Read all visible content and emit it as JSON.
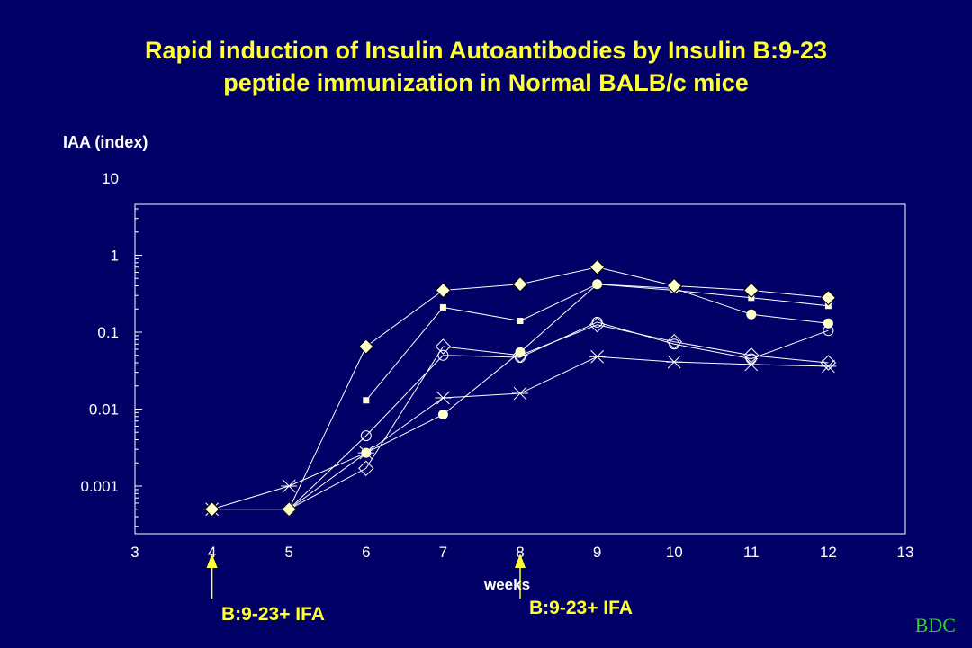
{
  "title_line1": "Rapid induction of Insulin Autoantibodies by Insulin B:9-23",
  "title_line2": "peptide immunization in Normal BALB/c mice",
  "logo": "BDC",
  "annotations": {
    "arrow1_label": "B:9-23+ IFA",
    "arrow2_label": "B:9-23+ IFA",
    "arrow1_x": 4,
    "arrow2_x": 8
  },
  "colors": {
    "background": "#000066",
    "title": "#ffff33",
    "axis": "#ffffff",
    "marker_fill": "#ffffcc",
    "logo": "#33cc33"
  },
  "chart_data": {
    "type": "line",
    "title": "Rapid induction of Insulin Autoantibodies by Insulin B:9-23 peptide immunization in Normal BALB/c mice",
    "xlabel": "weeks",
    "ylabel": "IAA (index)",
    "y_scale": "log",
    "xlim": [
      3,
      13
    ],
    "ylim": [
      0.0002,
      10
    ],
    "x_ticks": [
      "3",
      "4",
      "5",
      "6",
      "7",
      "8",
      "9",
      "10",
      "11",
      "12",
      "13"
    ],
    "y_ticks": [
      "10",
      "1",
      "0.1",
      "0.01",
      "0.001"
    ],
    "y_tick_values": [
      10,
      1,
      0.1,
      0.01,
      0.001
    ],
    "grid": false,
    "legend": "none",
    "series": [
      {
        "marker": "filled-diamond",
        "x": [
          4,
          5,
          6,
          7,
          8,
          9,
          10,
          11,
          12
        ],
        "y": [
          0.0005,
          0.0005,
          0.065,
          0.35,
          0.42,
          0.7,
          0.4,
          0.35,
          0.28
        ]
      },
      {
        "marker": "filled-square",
        "x": [
          6,
          7,
          8,
          9,
          10,
          11,
          12
        ],
        "y": [
          0.013,
          0.21,
          0.14,
          0.42,
          0.35,
          0.28,
          0.22
        ]
      },
      {
        "marker": "filled-circle",
        "x": [
          5,
          6,
          7,
          8,
          9,
          10,
          11,
          12
        ],
        "y": [
          0.0005,
          0.0027,
          0.0085,
          0.055,
          0.42,
          0.37,
          0.17,
          0.13
        ]
      },
      {
        "marker": "open-circle",
        "x": [
          5,
          6,
          7,
          8,
          9,
          10,
          11,
          12
        ],
        "y": [
          0.0005,
          0.0045,
          0.05,
          0.047,
          0.135,
          0.07,
          0.045,
          0.105
        ]
      },
      {
        "marker": "open-diamond",
        "x": [
          5,
          6,
          7,
          8,
          9,
          10,
          11,
          12
        ],
        "y": [
          0.0005,
          0.0017,
          0.065,
          0.05,
          0.125,
          0.075,
          0.05,
          0.04
        ]
      },
      {
        "marker": "star",
        "x": [
          4,
          5,
          6,
          7,
          8,
          9,
          10,
          11,
          12
        ],
        "y": [
          0.0005,
          0.001,
          0.0027,
          0.014,
          0.016,
          0.048,
          0.041,
          0.038,
          0.036
        ]
      }
    ]
  }
}
